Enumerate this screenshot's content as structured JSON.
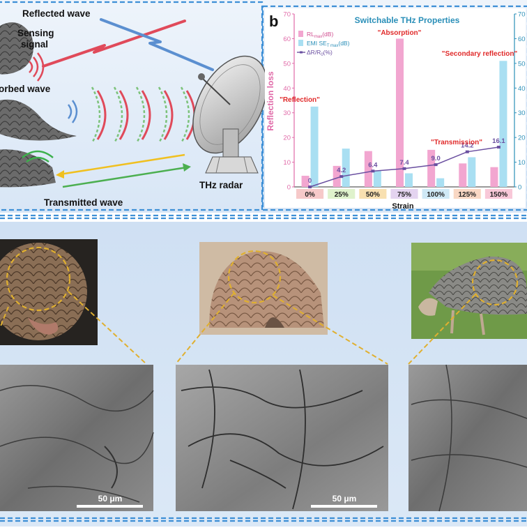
{
  "top_left": {
    "reflected_wave": "Reflected wave",
    "sensing_signal_line1": "Sensing",
    "sensing_signal_line2": "signal",
    "absorbed_wave": "orbed wave",
    "thz_radar": "THz radar",
    "transmitted_wave": "Transmitted wave"
  },
  "panel_b": {
    "letter": "b",
    "title": "Switchable THz Properties",
    "legend": {
      "rl": "RL",
      "rl_sub": "max",
      "rl_unit": "(dB)",
      "emi": "EMI SE",
      "emi_sub": "T max",
      "emi_unit": "(dB)",
      "resist": "ΔR/R",
      "resist_sub": "0",
      "resist_unit": "(%)"
    },
    "annotations": {
      "reflection": "\"Reflection\"",
      "absorption": "\"Absorption\"",
      "transmission": "\"Transmission\"",
      "secondary": "\"Secondary reflection\""
    },
    "xlabel": "Strain",
    "ylabel": "Reflection loss"
  },
  "chart_data": {
    "type": "bar",
    "title": "Switchable THz Properties",
    "xlabel": "Strain",
    "ylabel": "Reflection loss",
    "categories": [
      "0%",
      "25%",
      "50%",
      "75%",
      "100%",
      "125%",
      "150%"
    ],
    "ylim": [
      0,
      70
    ],
    "yticks": [
      0,
      10,
      20,
      30,
      40,
      50,
      60,
      70
    ],
    "series": [
      {
        "name": "RLmax(dB)",
        "values": [
          4.5,
          8.5,
          14.5,
          60.0,
          15.0,
          9.5,
          8.0
        ],
        "color": "#f2a6d0"
      },
      {
        "name": "EMI SET max(dB)",
        "values": [
          32.5,
          15.5,
          6.5,
          5.5,
          3.5,
          12.0,
          51.0
        ],
        "color": "#a9dff2"
      },
      {
        "name": "ΔR/R0(%)",
        "values": [
          0,
          4.2,
          6.4,
          7.4,
          9.0,
          14.2,
          16.1
        ],
        "color": "#6a4fa0"
      }
    ],
    "resistance_labels": [
      "0",
      "4.2",
      "6.4",
      "7.4",
      "9.0",
      "14.2",
      "16.1"
    ],
    "category_colors": [
      "#f6c9c9",
      "#dff2cc",
      "#f8e0b0",
      "#e4d4f0",
      "#cfe9f6",
      "#f9d8c4",
      "#f8c8d8"
    ]
  },
  "bottom": {
    "scale_bar_1": "50 μm",
    "scale_bar_2": "50 μm"
  },
  "colors": {
    "frame_blue": "#3d8fd6",
    "wave_red": "#e04a5a",
    "wave_green": "#7cc27a",
    "arrow_yellow": "#f0c020",
    "arrow_green": "#4caf50",
    "highlight_yellow": "#e0b030"
  },
  "icons": [
    "satellite-dish-icon",
    "wave-arc-icon",
    "pangolin-scale-icon"
  ]
}
